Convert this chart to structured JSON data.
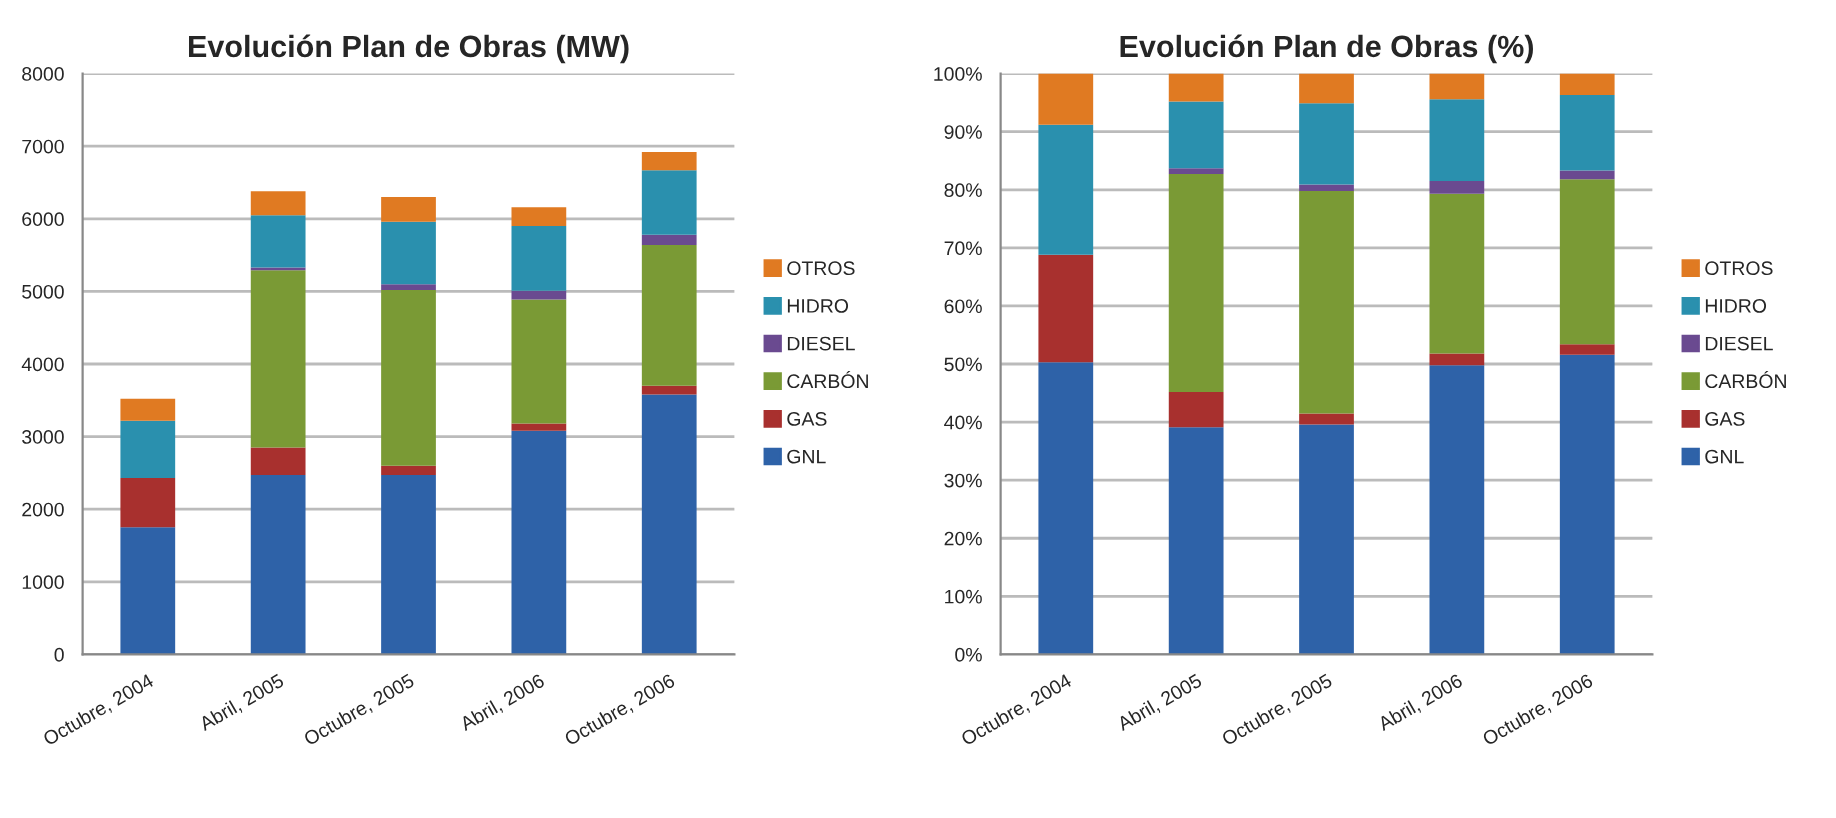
{
  "chart_data": [
    {
      "type": "bar",
      "stacked": true,
      "title": "Evolución Plan de Obras (MW)",
      "categories": [
        "Octubre, 2004",
        "Abril, 2005",
        "Octubre, 2005",
        "Abril, 2006",
        "Octubre, 2006"
      ],
      "ylim": [
        0,
        8000
      ],
      "yticks": [
        0,
        1000,
        2000,
        3000,
        4000,
        5000,
        6000,
        7000,
        8000
      ],
      "grid": "y",
      "legend": "right",
      "series": [
        {
          "name": "GNL",
          "color": "#2e62a8",
          "values": [
            1750,
            2470,
            2470,
            3080,
            3580
          ]
        },
        {
          "name": "GAS",
          "color": "#a8302e",
          "values": [
            680,
            380,
            130,
            100,
            120
          ]
        },
        {
          "name": "CARBÓN",
          "color": "#7a9a35",
          "values": [
            0,
            2440,
            2420,
            1710,
            1940
          ]
        },
        {
          "name": "DIESEL",
          "color": "#6a4a90",
          "values": [
            0,
            40,
            80,
            120,
            140
          ]
        },
        {
          "name": "HIDRO",
          "color": "#2a90ae",
          "values": [
            790,
            720,
            860,
            890,
            890
          ]
        },
        {
          "name": "OTROS",
          "color": "#e07a22",
          "values": [
            300,
            330,
            340,
            260,
            250
          ]
        }
      ]
    },
    {
      "type": "bar",
      "stacked": true,
      "title": "Evolución Plan de Obras (%)",
      "categories": [
        "Octubre, 2004",
        "Abril, 2005",
        "Octubre, 2005",
        "Abril, 2006",
        "Octubre, 2006"
      ],
      "ylim": [
        0,
        100
      ],
      "yticks": [
        {
          "value": 0,
          "label": "0%"
        },
        {
          "value": 10,
          "label": "10%"
        },
        {
          "value": 20,
          "label": "20%"
        },
        {
          "value": 30,
          "label": "30%"
        },
        {
          "value": 40,
          "label": "40%"
        },
        {
          "value": 50,
          "label": "50%"
        },
        {
          "value": 60,
          "label": "60%"
        },
        {
          "value": 70,
          "label": "70%"
        },
        {
          "value": 80,
          "label": "80%"
        },
        {
          "value": 90,
          "label": "90%"
        },
        {
          "value": 100,
          "label": "100%"
        }
      ],
      "grid": "y",
      "legend": "right",
      "series": [
        {
          "name": "GNL",
          "color": "#2e62a8",
          "values": [
            50.3,
            39.1,
            39.6,
            49.8,
            51.6
          ]
        },
        {
          "name": "GAS",
          "color": "#a8302e",
          "values": [
            18.5,
            6.1,
            1.9,
            2.0,
            1.8
          ]
        },
        {
          "name": "CARBÓN",
          "color": "#7a9a35",
          "values": [
            0,
            37.5,
            38.3,
            27.5,
            28.4
          ]
        },
        {
          "name": "DIESEL",
          "color": "#6a4a90",
          "values": [
            0,
            1.0,
            1.1,
            2.2,
            1.5
          ]
        },
        {
          "name": "HIDRO",
          "color": "#2a90ae",
          "values": [
            22.4,
            11.5,
            14.0,
            14.1,
            13.0
          ]
        },
        {
          "name": "OTROS",
          "color": "#e07a22",
          "values": [
            8.8,
            4.8,
            5.1,
            4.4,
            3.7
          ]
        }
      ]
    }
  ]
}
